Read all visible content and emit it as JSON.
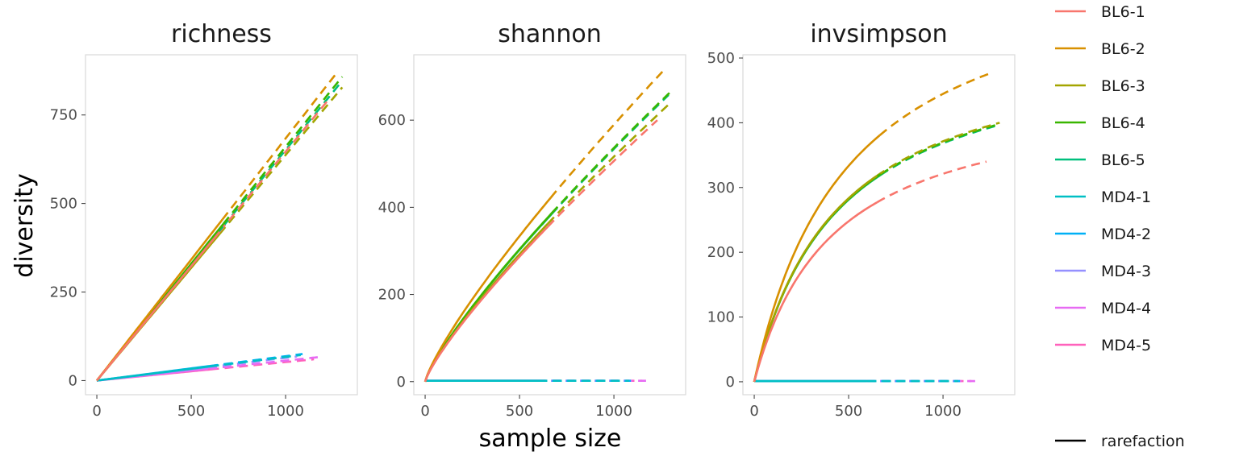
{
  "chart_data": {
    "type": "line",
    "ylabel": "diversity",
    "xlabel": "sample size",
    "series_names": [
      "BL6-1",
      "BL6-2",
      "BL6-3",
      "BL6-4",
      "BL6-5",
      "MD4-1",
      "MD4-2",
      "MD4-3",
      "MD4-4",
      "MD4-5"
    ],
    "series_colors": [
      "#F8766D",
      "#D89000",
      "#A3A500",
      "#39B600",
      "#00BF7D",
      "#00BFC4",
      "#00B0F6",
      "#9590FF",
      "#E76BF3",
      "#FF62BC"
    ],
    "legend_extra_label": "rarefaction",
    "legend_position": "right",
    "grid": false,
    "panels": [
      {
        "title": "richness",
        "xlim": [
          -60,
          1380
        ],
        "ylim": [
          -40,
          920
        ],
        "xticks": [
          0,
          500,
          1000
        ],
        "yticks": [
          0,
          250,
          500,
          750
        ],
        "series": [
          {
            "name": "BL6-1",
            "curve": "linear",
            "y_end": 795,
            "n_obs": 650,
            "x_end": 1230
          },
          {
            "name": "BL6-2",
            "curve": "linear",
            "y_end": 865,
            "n_obs": 665,
            "x_end": 1265
          },
          {
            "name": "BL6-3",
            "curve": "linear",
            "y_end": 828,
            "n_obs": 650,
            "x_end": 1300
          },
          {
            "name": "BL6-4",
            "curve": "linear",
            "y_end": 858,
            "n_obs": 670,
            "x_end": 1300
          },
          {
            "name": "BL6-5",
            "curve": "linear",
            "y_end": 840,
            "n_obs": 668,
            "x_end": 1290
          },
          {
            "name": "MD4-1",
            "curve": "linear",
            "y_end": 72,
            "n_obs": 600,
            "x_end": 1080
          },
          {
            "name": "MD4-2",
            "curve": "linear",
            "y_end": 75,
            "n_obs": 595,
            "x_end": 1090
          },
          {
            "name": "MD4-3",
            "curve": "linear",
            "y_end": 68,
            "n_obs": 590,
            "x_end": 1060
          },
          {
            "name": "MD4-4",
            "curve": "linear",
            "y_end": 66,
            "n_obs": 590,
            "x_end": 1170
          },
          {
            "name": "MD4-5",
            "curve": "linear",
            "y_end": 60,
            "n_obs": 600,
            "x_end": 1150
          }
        ]
      },
      {
        "title": "shannon",
        "xlim": [
          -60,
          1380
        ],
        "ylim": [
          -30,
          750
        ],
        "xticks": [
          0,
          500,
          1000
        ],
        "yticks": [
          0,
          200,
          400,
          600
        ],
        "series": [
          {
            "name": "BL6-1",
            "curve": "power",
            "exp": 0.82,
            "y_end": 600,
            "n_obs": 650,
            "x_end": 1230
          },
          {
            "name": "BL6-2",
            "curve": "power",
            "exp": 0.82,
            "y_end": 715,
            "n_obs": 665,
            "x_end": 1265
          },
          {
            "name": "BL6-3",
            "curve": "power",
            "exp": 0.82,
            "y_end": 640,
            "n_obs": 650,
            "x_end": 1300
          },
          {
            "name": "BL6-4",
            "curve": "power",
            "exp": 0.82,
            "y_end": 665,
            "n_obs": 670,
            "x_end": 1300
          },
          {
            "name": "BL6-5",
            "curve": "power",
            "exp": 0.82,
            "y_end": 658,
            "n_obs": 668,
            "x_end": 1290
          },
          {
            "name": "MD4-1",
            "curve": "flat",
            "y_end": 2,
            "n_obs": 600,
            "x_end": 1080
          },
          {
            "name": "MD4-2",
            "curve": "flat",
            "y_end": 2,
            "n_obs": 595,
            "x_end": 1090
          },
          {
            "name": "MD4-3",
            "curve": "flat",
            "y_end": 2,
            "n_obs": 590,
            "x_end": 1060
          },
          {
            "name": "MD4-4",
            "curve": "flat",
            "y_end": 2,
            "n_obs": 590,
            "x_end": 1170
          },
          {
            "name": "MD4-5",
            "curve": "flat",
            "y_end": 2,
            "n_obs": 600,
            "x_end": 1150
          }
        ]
      },
      {
        "title": "invsimpson",
        "xlim": [
          -60,
          1380
        ],
        "ylim": [
          -20,
          505
        ],
        "xticks": [
          0,
          500,
          1000
        ],
        "yticks": [
          0,
          100,
          200,
          300,
          400,
          500
        ],
        "series": [
          {
            "name": "BL6-1",
            "curve": "sat",
            "k": 420,
            "y_end": 340,
            "n_obs": 650,
            "x_end": 1230
          },
          {
            "name": "BL6-2",
            "curve": "sat",
            "k": 500,
            "y_end": 478,
            "n_obs": 665,
            "x_end": 1265
          },
          {
            "name": "BL6-3",
            "curve": "sat",
            "k": 450,
            "y_end": 400,
            "n_obs": 650,
            "x_end": 1300
          },
          {
            "name": "BL6-4",
            "curve": "sat",
            "k": 450,
            "y_end": 398,
            "n_obs": 670,
            "x_end": 1300
          },
          {
            "name": "BL6-5",
            "curve": "sat",
            "k": 450,
            "y_end": 396,
            "n_obs": 668,
            "x_end": 1290
          },
          {
            "name": "MD4-1",
            "curve": "flat",
            "y_end": 1,
            "n_obs": 600,
            "x_end": 1080
          },
          {
            "name": "MD4-2",
            "curve": "flat",
            "y_end": 1,
            "n_obs": 595,
            "x_end": 1090
          },
          {
            "name": "MD4-3",
            "curve": "flat",
            "y_end": 1,
            "n_obs": 590,
            "x_end": 1060
          },
          {
            "name": "MD4-4",
            "curve": "flat",
            "y_end": 1,
            "n_obs": 590,
            "x_end": 1170
          },
          {
            "name": "MD4-5",
            "curve": "flat",
            "y_end": 1,
            "n_obs": 600,
            "x_end": 1150
          }
        ]
      }
    ]
  }
}
